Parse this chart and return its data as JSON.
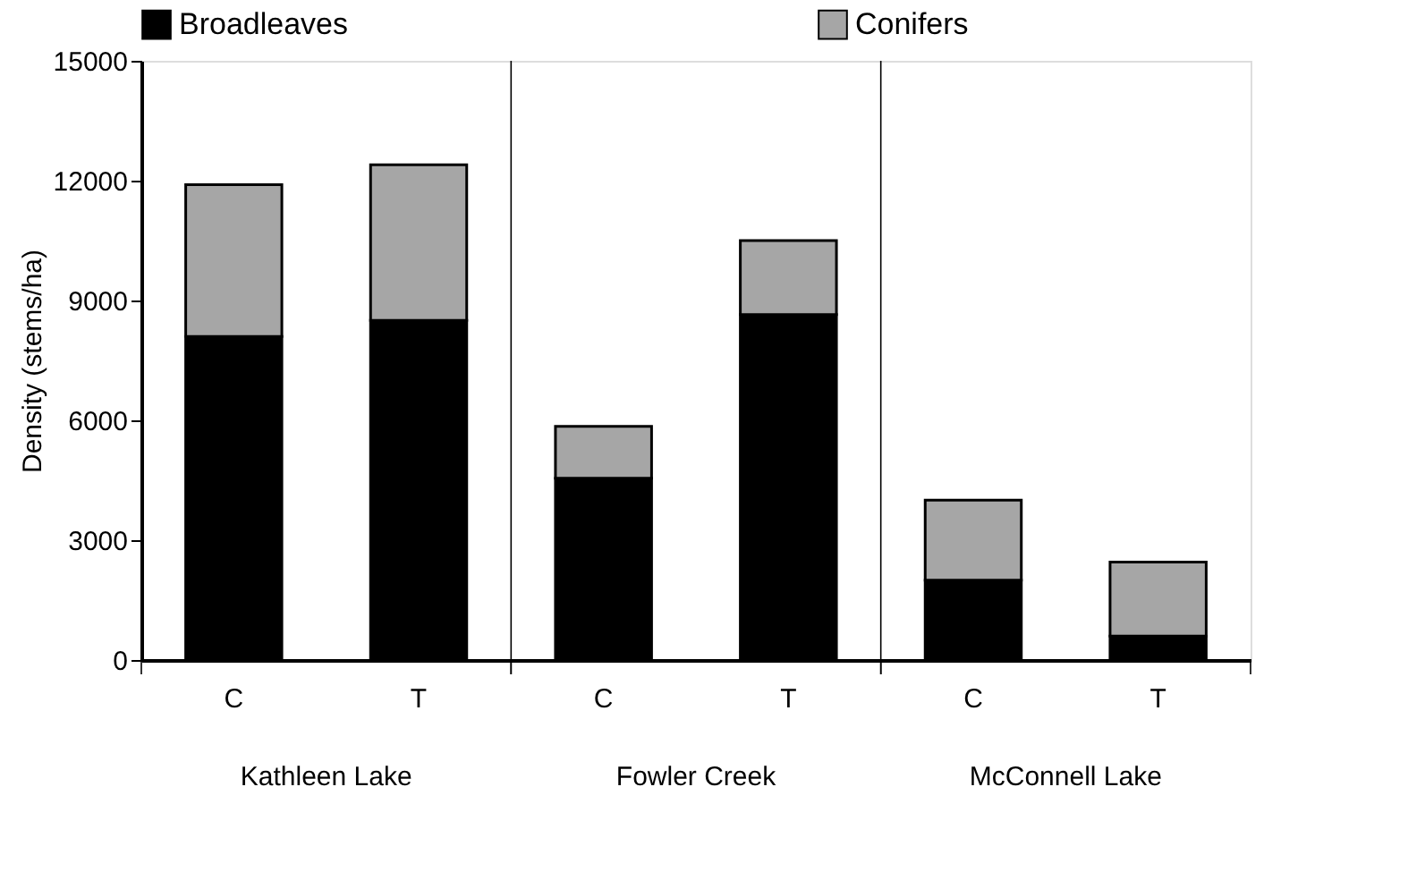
{
  "chart_data": {
    "type": "bar",
    "stacked": true,
    "ylabel": "Density (stems/ha)",
    "categories": [
      "C",
      "T",
      "C",
      "T",
      "C",
      "T"
    ],
    "annotations": [
      "Kathleen Lake",
      "Fowler Creek",
      "McConnell Lake"
    ],
    "series": [
      {
        "name": "Broadleaves",
        "color": "#000000",
        "values": [
          8100,
          8500,
          4550,
          8650,
          2000,
          600
        ]
      },
      {
        "name": "Conifers",
        "color": "#a6a6a6",
        "values": [
          3800,
          3900,
          1300,
          1850,
          2000,
          1850
        ]
      }
    ],
    "ylim": [
      0,
      15000
    ],
    "yticks": [
      0,
      3000,
      6000,
      9000,
      12000,
      15000
    ],
    "legend": "top"
  }
}
